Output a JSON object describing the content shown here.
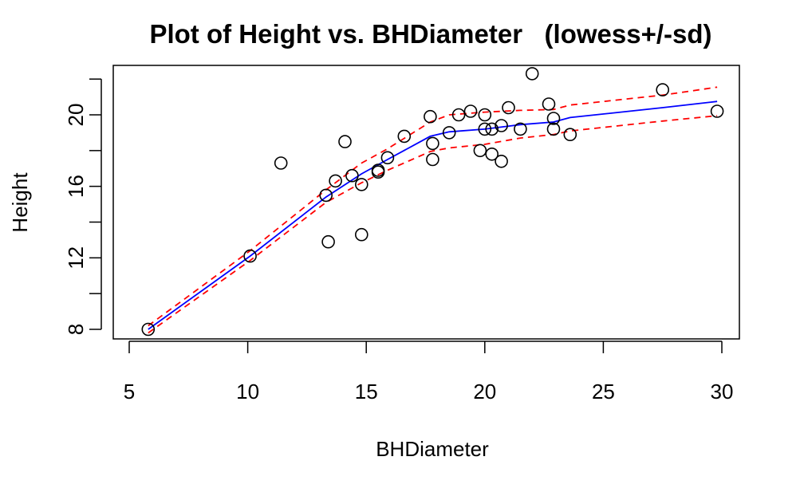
{
  "chart_data": {
    "type": "scatter",
    "title": "Plot of Height vs. BHDiameter   (lowess+/-sd)",
    "xlabel": "BHDiameter",
    "ylabel": "Height",
    "xlim": [
      5,
      30
    ],
    "ylim": [
      7.5,
      22.5
    ],
    "x_ticks": [
      5,
      10,
      15,
      20,
      25,
      30
    ],
    "y_ticks": [
      8,
      12,
      16,
      20
    ],
    "y_minor_ticks": [
      10,
      14,
      18,
      22
    ],
    "grid": false,
    "legend": "none",
    "colors": {
      "points": "#000000",
      "lowess": "#0000ff",
      "sd_bands": "#ff0000"
    },
    "points": [
      {
        "x": 5.8,
        "y": 8.0
      },
      {
        "x": 10.1,
        "y": 12.1
      },
      {
        "x": 11.4,
        "y": 17.3
      },
      {
        "x": 13.3,
        "y": 15.5
      },
      {
        "x": 13.4,
        "y": 12.9
      },
      {
        "x": 13.7,
        "y": 16.3
      },
      {
        "x": 14.1,
        "y": 18.5
      },
      {
        "x": 14.4,
        "y": 16.6
      },
      {
        "x": 14.8,
        "y": 16.1
      },
      {
        "x": 14.8,
        "y": 13.3
      },
      {
        "x": 15.5,
        "y": 16.9
      },
      {
        "x": 15.5,
        "y": 16.8
      },
      {
        "x": 15.9,
        "y": 17.6
      },
      {
        "x": 16.6,
        "y": 18.8
      },
      {
        "x": 17.7,
        "y": 19.9
      },
      {
        "x": 17.8,
        "y": 18.4
      },
      {
        "x": 17.8,
        "y": 17.5
      },
      {
        "x": 18.5,
        "y": 19.0
      },
      {
        "x": 18.9,
        "y": 20.0
      },
      {
        "x": 19.4,
        "y": 20.2
      },
      {
        "x": 19.8,
        "y": 18.0
      },
      {
        "x": 20.0,
        "y": 20.0
      },
      {
        "x": 20.0,
        "y": 19.2
      },
      {
        "x": 20.3,
        "y": 19.2
      },
      {
        "x": 20.3,
        "y": 17.8
      },
      {
        "x": 20.7,
        "y": 19.4
      },
      {
        "x": 20.7,
        "y": 17.4
      },
      {
        "x": 21.0,
        "y": 20.4
      },
      {
        "x": 21.5,
        "y": 19.2
      },
      {
        "x": 22.0,
        "y": 22.3
      },
      {
        "x": 22.7,
        "y": 20.6
      },
      {
        "x": 22.9,
        "y": 19.8
      },
      {
        "x": 22.9,
        "y": 19.2
      },
      {
        "x": 23.6,
        "y": 18.9
      },
      {
        "x": 27.5,
        "y": 21.4
      },
      {
        "x": 29.8,
        "y": 20.2
      }
    ],
    "series": [
      {
        "role": "lowess",
        "x": [
          5.8,
          10.1,
          13.3,
          14.8,
          15.9,
          17.7,
          18.5,
          20.0,
          21.5,
          22.9,
          23.6,
          27.5,
          29.8
        ],
        "y": [
          8.0,
          12.1,
          15.4,
          16.7,
          17.5,
          18.8,
          19.05,
          19.2,
          19.45,
          19.6,
          19.85,
          20.4,
          20.75
        ]
      },
      {
        "role": "upper-sd",
        "x": [
          5.8,
          10.1,
          13.3,
          14.8,
          15.9,
          17.7,
          18.5,
          20.0,
          21.5,
          22.9,
          23.6,
          27.5,
          29.8
        ],
        "y": [
          8.2,
          12.4,
          15.8,
          17.3,
          18.1,
          19.6,
          20.0,
          20.15,
          20.25,
          20.3,
          20.55,
          21.1,
          21.55
        ]
      },
      {
        "role": "lower-sd",
        "x": [
          5.8,
          10.1,
          13.3,
          14.8,
          15.9,
          17.7,
          18.5,
          20.0,
          21.5,
          22.9,
          23.6,
          27.5,
          29.8
        ],
        "y": [
          7.8,
          11.85,
          15.1,
          16.2,
          16.9,
          17.95,
          18.15,
          18.35,
          18.7,
          18.9,
          19.1,
          19.65,
          19.95
        ]
      }
    ]
  }
}
